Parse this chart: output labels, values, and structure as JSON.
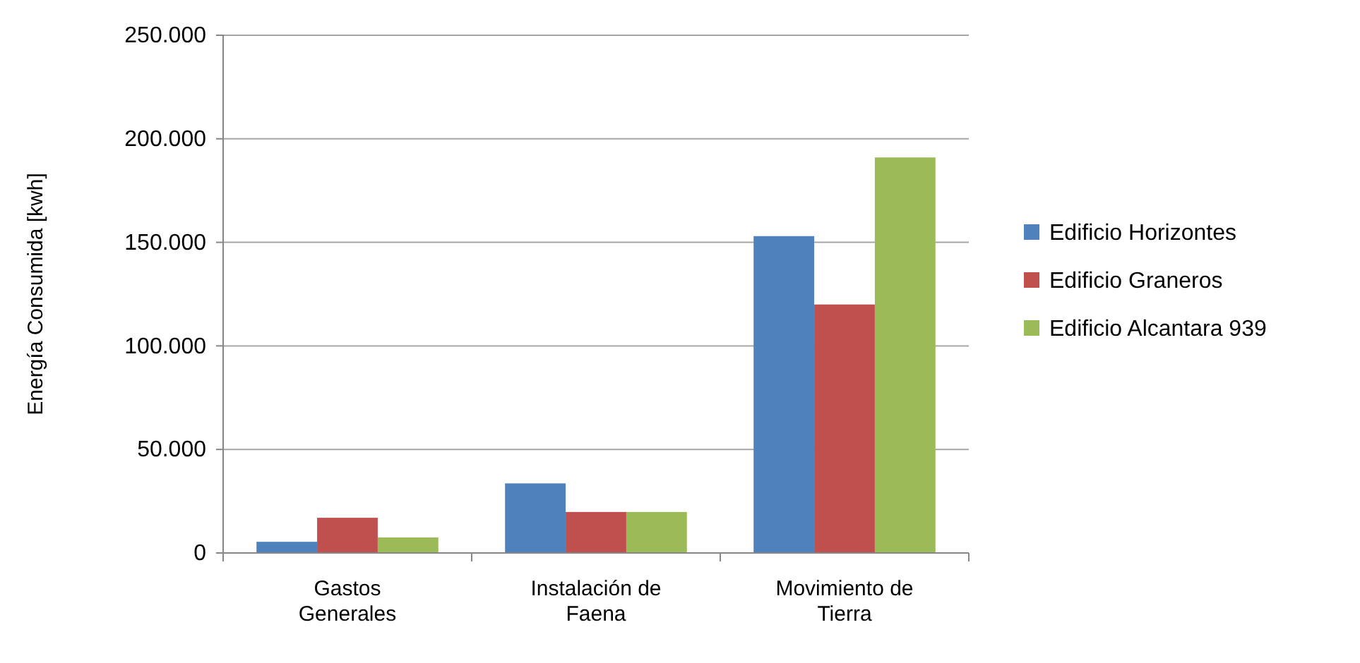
{
  "chart_data": {
    "type": "bar",
    "ylabel": "Energía Consumida [kwh]",
    "categories": [
      "Gastos Generales",
      "Instalación de Faena",
      "Movimiento de Tierra"
    ],
    "series": [
      {
        "name": "Edificio Horizontes",
        "color": "#4f81bd",
        "values": [
          5400,
          33600,
          153000
        ]
      },
      {
        "name": "Edificio Graneros",
        "color": "#c0504d",
        "values": [
          17000,
          19800,
          120000
        ]
      },
      {
        "name": "Edificio Alcantara 939",
        "color": "#9bbb59",
        "values": [
          7500,
          19800,
          191000
        ]
      }
    ],
    "ylim": [
      0,
      250000
    ],
    "yticks": [
      0,
      {
        "value": 50000,
        "label": "50.000"
      },
      {
        "value": 100000,
        "label": "100.000"
      },
      {
        "value": 150000,
        "label": "150.000"
      },
      {
        "value": 200000,
        "label": "200.000"
      },
      {
        "value": 250000,
        "label": "250.000"
      }
    ],
    "grid": "y",
    "legend": "right"
  }
}
